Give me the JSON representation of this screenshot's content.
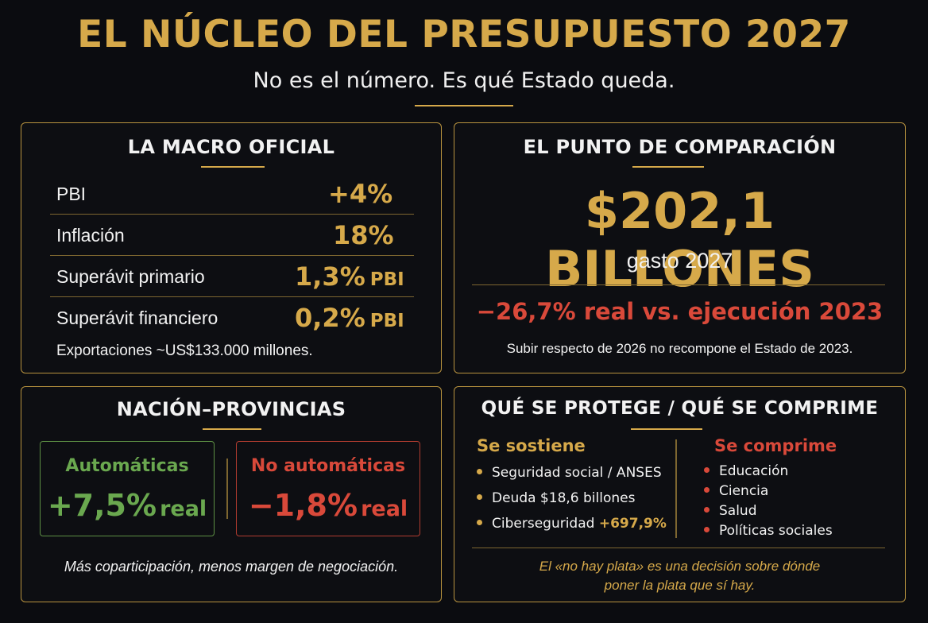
{
  "header": {
    "title": "EL NÚCLEO DEL PRESUPUESTO 2027",
    "subtitle": "No es el número. Es qué Estado queda."
  },
  "macro": {
    "title": "LA MACRO OFICIAL",
    "rows": [
      {
        "label": "PBI",
        "value": "+4%",
        "unit": ""
      },
      {
        "label": "Inflación",
        "value": "18%",
        "unit": ""
      },
      {
        "label": "Superávit primario",
        "value": "1,3%",
        "unit": "PBI"
      },
      {
        "label": "Superávit financiero",
        "value": "0,2%",
        "unit": "PBI"
      }
    ],
    "note": "Exportaciones ~US$133.000 millones."
  },
  "comparison": {
    "title": "EL PUNTO DE COMPARACIÓN",
    "amount": "$202,1 BILLONES",
    "amount_caption": "gasto 2027",
    "real_change": "−26,7% real vs. ejecución 2023",
    "note": "Subir respecto de 2026 no recompone el Estado de 2023."
  },
  "nation_provinces": {
    "title": "NACIÓN–PROVINCIAS",
    "automatic": {
      "label": "Automáticas",
      "value": "+7,5%",
      "unit": "real"
    },
    "non_automatic": {
      "label": "No automáticas",
      "value": "−1,8%",
      "unit": "real"
    },
    "note": "Más coparticipación, menos margen de negociación."
  },
  "protect_compress": {
    "title": "QUÉ SE PROTEGE / QUÉ SE COMPRIME",
    "sustained": {
      "heading": "Se sostiene",
      "items": [
        "Seguridad social / ANSES",
        "Deuda $18,6 billones",
        "Ciberseguridad"
      ],
      "cyber_pct": "+697,9%"
    },
    "compressed": {
      "heading": "Se comprime",
      "items": [
        "Educación",
        "Ciencia",
        "Salud",
        "Políticas sociales"
      ]
    },
    "footer_line1": "El «no hay plata» es una decisión sobre dónde",
    "footer_line2": "poner la plata que sí hay."
  },
  "colors": {
    "gold": "#d6a94a",
    "red": "#d9493a",
    "green": "#6aa84f",
    "background": "#0b0c10"
  }
}
